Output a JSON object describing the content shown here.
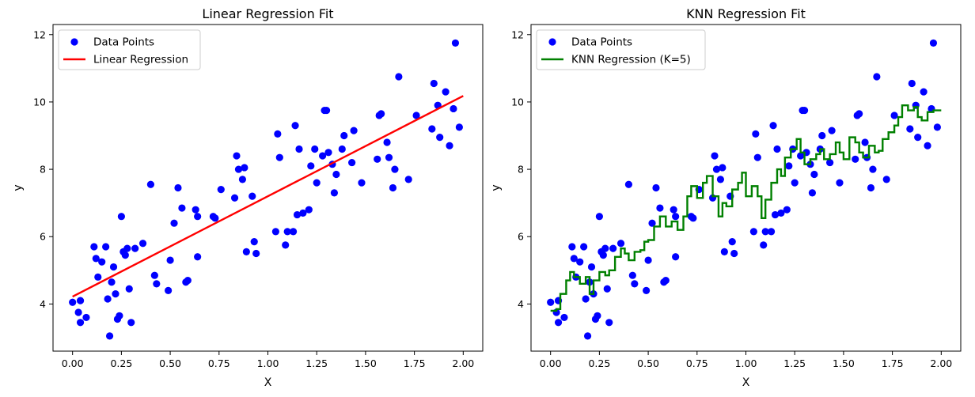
{
  "chart_data": [
    {
      "type": "scatter",
      "title": "Linear Regression Fit",
      "xlabel": "X",
      "ylabel": "y",
      "xlim": [
        -0.1,
        2.1
      ],
      "ylim": [
        2.6,
        12.3
      ],
      "xticks": [
        0.0,
        0.25,
        0.5,
        0.75,
        1.0,
        1.25,
        1.5,
        1.75,
        2.0
      ],
      "xtick_labels": [
        "0.00",
        "0.25",
        "0.50",
        "0.75",
        "1.00",
        "1.25",
        "1.50",
        "1.75",
        "2.00"
      ],
      "yticks": [
        4,
        6,
        8,
        10,
        12
      ],
      "ytick_labels": [
        "4",
        "6",
        "8",
        "10",
        "12"
      ],
      "legend_position": "top-left",
      "grid": false,
      "series": [
        {
          "name": "Data Points",
          "kind": "scatter",
          "color": "#0000ff"
        },
        {
          "name": "Linear Regression",
          "kind": "line",
          "color": "#ff0000",
          "x": [
            0.0,
            2.0
          ],
          "y": [
            4.22,
            10.18
          ]
        }
      ]
    },
    {
      "type": "scatter",
      "title": "KNN Regression Fit",
      "xlabel": "X",
      "ylabel": "y",
      "xlim": [
        -0.1,
        2.1
      ],
      "ylim": [
        2.6,
        12.3
      ],
      "xticks": [
        0.0,
        0.25,
        0.5,
        0.75,
        1.0,
        1.25,
        1.5,
        1.75,
        2.0
      ],
      "xtick_labels": [
        "0.00",
        "0.25",
        "0.50",
        "0.75",
        "1.00",
        "1.25",
        "1.50",
        "1.75",
        "2.00"
      ],
      "yticks": [
        4,
        6,
        8,
        10,
        12
      ],
      "ytick_labels": [
        "4",
        "6",
        "8",
        "10",
        "12"
      ],
      "legend_position": "top-left",
      "grid": false,
      "series": [
        {
          "name": "Data Points",
          "kind": "scatter",
          "color": "#0000ff"
        },
        {
          "name": "KNN Regression (K=5)",
          "kind": "step",
          "color": "#008000",
          "x": [
            0.0,
            0.03,
            0.05,
            0.08,
            0.1,
            0.12,
            0.15,
            0.18,
            0.2,
            0.22,
            0.25,
            0.28,
            0.3,
            0.33,
            0.36,
            0.38,
            0.4,
            0.43,
            0.46,
            0.48,
            0.5,
            0.53,
            0.56,
            0.59,
            0.62,
            0.65,
            0.68,
            0.7,
            0.72,
            0.75,
            0.78,
            0.8,
            0.83,
            0.86,
            0.88,
            0.9,
            0.93,
            0.96,
            0.98,
            1.0,
            1.03,
            1.06,
            1.08,
            1.1,
            1.13,
            1.16,
            1.18,
            1.2,
            1.23,
            1.26,
            1.28,
            1.3,
            1.33,
            1.36,
            1.38,
            1.4,
            1.43,
            1.46,
            1.48,
            1.5,
            1.53,
            1.56,
            1.58,
            1.6,
            1.63,
            1.66,
            1.68,
            1.7,
            1.73,
            1.76,
            1.78,
            1.8,
            1.83,
            1.86,
            1.88,
            1.9,
            1.93,
            1.96,
            2.0
          ],
          "y": [
            3.8,
            3.85,
            4.3,
            4.7,
            4.95,
            4.8,
            4.6,
            4.8,
            4.3,
            4.7,
            4.95,
            4.85,
            5.0,
            5.4,
            5.65,
            5.5,
            5.3,
            5.55,
            5.6,
            5.85,
            5.9,
            6.3,
            6.6,
            6.3,
            6.45,
            6.2,
            6.6,
            7.2,
            7.5,
            7.15,
            7.6,
            7.8,
            7.2,
            6.6,
            7.0,
            6.9,
            7.4,
            7.6,
            7.9,
            7.2,
            7.5,
            7.2,
            6.55,
            7.1,
            7.6,
            8.0,
            7.8,
            8.35,
            8.6,
            8.9,
            8.5,
            8.15,
            8.3,
            8.45,
            8.6,
            8.3,
            8.45,
            8.8,
            8.5,
            8.3,
            8.95,
            8.8,
            8.5,
            8.35,
            8.7,
            8.5,
            8.55,
            8.9,
            9.1,
            9.3,
            9.55,
            9.9,
            9.75,
            9.85,
            9.55,
            9.45,
            9.7,
            9.75,
            9.75
          ]
        }
      ],
      "points_shared": true
    }
  ],
  "data_points": {
    "x": [
      0.0,
      0.03,
      0.04,
      0.04,
      0.07,
      0.11,
      0.12,
      0.13,
      0.15,
      0.17,
      0.18,
      0.19,
      0.2,
      0.21,
      0.22,
      0.23,
      0.24,
      0.25,
      0.26,
      0.27,
      0.28,
      0.29,
      0.3,
      0.32,
      0.36,
      0.4,
      0.42,
      0.43,
      0.49,
      0.5,
      0.52,
      0.54,
      0.56,
      0.58,
      0.59,
      0.63,
      0.64,
      0.64,
      0.72,
      0.73,
      0.76,
      0.83,
      0.84,
      0.85,
      0.87,
      0.88,
      0.89,
      0.92,
      0.93,
      0.94,
      1.04,
      1.05,
      1.06,
      1.09,
      1.1,
      1.13,
      1.14,
      1.15,
      1.16,
      1.18,
      1.21,
      1.22,
      1.24,
      1.25,
      1.28,
      1.29,
      1.3,
      1.31,
      1.33,
      1.34,
      1.35,
      1.38,
      1.39,
      1.43,
      1.44,
      1.48,
      1.56,
      1.57,
      1.58,
      1.61,
      1.62,
      1.64,
      1.65,
      1.67,
      1.72,
      1.76,
      1.84,
      1.85,
      1.87,
      1.88,
      1.91,
      1.93,
      1.95,
      1.96,
      1.98
    ],
    "y": [
      4.05,
      3.75,
      4.1,
      3.45,
      3.6,
      5.7,
      5.35,
      4.8,
      5.25,
      5.7,
      4.15,
      3.05,
      4.65,
      5.1,
      4.3,
      3.55,
      3.65,
      6.6,
      5.55,
      5.45,
      5.65,
      4.45,
      3.45,
      5.65,
      5.8,
      7.55,
      4.85,
      4.6,
      4.4,
      5.3,
      6.4,
      7.45,
      6.85,
      4.65,
      4.7,
      6.8,
      6.6,
      5.4,
      6.6,
      6.55,
      7.4,
      7.15,
      8.4,
      8.0,
      7.7,
      8.05,
      5.55,
      7.2,
      5.85,
      5.5,
      6.15,
      9.05,
      8.35,
      5.75,
      6.15,
      6.15,
      9.3,
      6.65,
      8.6,
      6.7,
      6.8,
      8.1,
      8.6,
      7.6,
      8.4,
      9.75,
      9.75,
      8.5,
      8.15,
      7.3,
      7.85,
      8.6,
      9.0,
      8.2,
      9.15,
      7.6,
      8.3,
      9.6,
      9.65,
      8.8,
      8.35,
      7.45,
      8.0,
      10.75,
      7.7,
      9.6,
      9.2,
      10.55,
      9.9,
      8.95,
      10.3,
      8.7,
      9.8,
      11.75,
      9.25
    ]
  }
}
